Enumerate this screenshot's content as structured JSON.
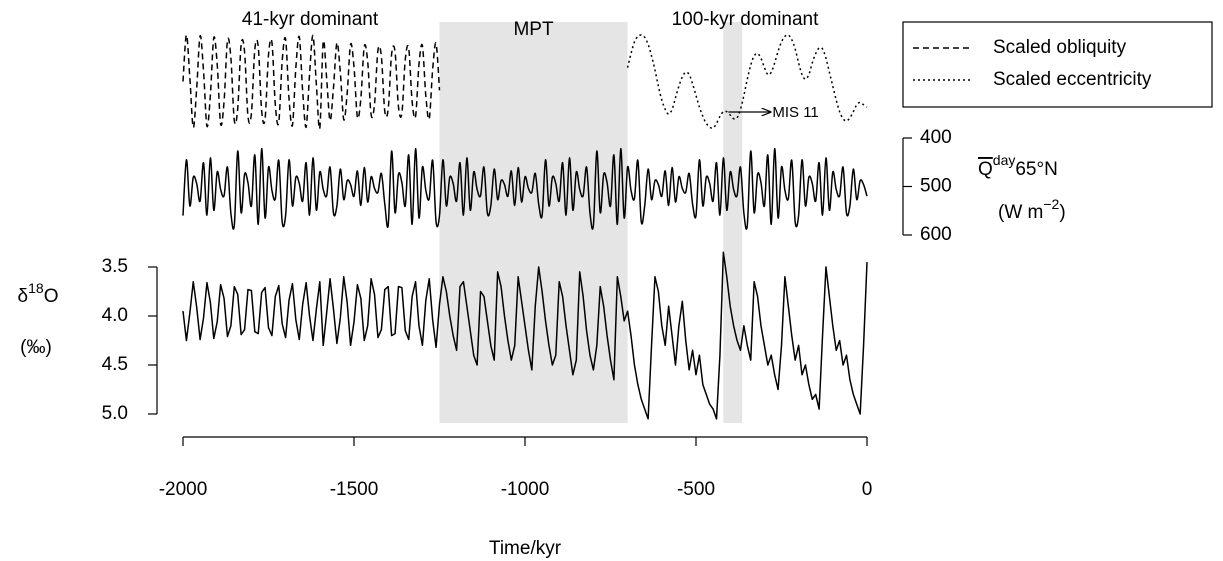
{
  "chart_data": {
    "type": "line",
    "period_labels": [
      "41-kyr dominant",
      "100-kyr dominant"
    ],
    "regions": [
      {
        "label": "MPT",
        "x": [
          -1250,
          -700
        ]
      },
      {
        "label": "MIS 11",
        "x": [
          -420,
          -365
        ]
      }
    ],
    "x_label": "Time/kyr",
    "y_label": [
      "δ",
      "18",
      "O"
    ],
    "y_units": "(‰)",
    "y2_label": [
      "Q",
      "day",
      "65°N"
    ],
    "y2_units": [
      "(W m",
      "−2",
      ")"
    ],
    "legend": "topright",
    "xlim": [
      -2000,
      0
    ],
    "xticks": [
      -2000,
      -1500,
      -1000,
      -500,
      0
    ],
    "ylim": [
      5.0,
      3.5
    ],
    "yticks": [
      3.5,
      {
        "value": 4,
        "label": "4.0"
      },
      4.5,
      {
        "value": 5,
        "label": "5.0"
      }
    ],
    "y2lim": [
      600,
      400
    ],
    "y2ticks": [
      400,
      500,
      600
    ],
    "top_ylim": [
      -1,
      1
    ],
    "x": [
      -2000,
      -1990,
      -1980,
      -1970,
      -1960,
      -1950,
      -1940,
      -1930,
      -1920,
      -1910,
      -1900,
      -1890,
      -1880,
      -1870,
      -1860,
      -1850,
      -1840,
      -1830,
      -1820,
      -1810,
      -1800,
      -1790,
      -1780,
      -1770,
      -1760,
      -1750,
      -1740,
      -1730,
      -1720,
      -1710,
      -1700,
      -1690,
      -1680,
      -1670,
      -1660,
      -1650,
      -1640,
      -1630,
      -1620,
      -1610,
      -1600,
      -1590,
      -1580,
      -1570,
      -1560,
      -1550,
      -1540,
      -1530,
      -1520,
      -1510,
      -1500,
      -1490,
      -1480,
      -1470,
      -1460,
      -1450,
      -1440,
      -1430,
      -1420,
      -1410,
      -1400,
      -1390,
      -1380,
      -1370,
      -1360,
      -1350,
      -1340,
      -1330,
      -1320,
      -1310,
      -1300,
      -1290,
      -1280,
      -1270,
      -1260,
      -1250,
      -1240,
      -1230,
      -1220,
      -1210,
      -1200,
      -1190,
      -1180,
      -1170,
      -1160,
      -1150,
      -1140,
      -1130,
      -1120,
      -1110,
      -1100,
      -1090,
      -1080,
      -1070,
      -1060,
      -1050,
      -1040,
      -1030,
      -1020,
      -1010,
      -1000,
      -990,
      -980,
      -970,
      -960,
      -950,
      -940,
      -930,
      -920,
      -910,
      -900,
      -890,
      -880,
      -870,
      -860,
      -850,
      -840,
      -830,
      -820,
      -810,
      -800,
      -790,
      -780,
      -770,
      -760,
      -750,
      -740,
      -730,
      -720,
      -710,
      -700,
      -690,
      -680,
      -670,
      -660,
      -650,
      -640,
      -630,
      -620,
      -610,
      -600,
      -590,
      -580,
      -570,
      -560,
      -550,
      -540,
      -530,
      -520,
      -510,
      -500,
      -490,
      -480,
      -470,
      -460,
      -450,
      -440,
      -430,
      -420,
      -410,
      -400,
      -390,
      -380,
      -370,
      -360,
      -350,
      -340,
      -330,
      -320,
      -310,
      -300,
      -290,
      -280,
      -270,
      -260,
      -250,
      -240,
      -230,
      -220,
      -210,
      -200,
      -190,
      -180,
      -170,
      -160,
      -150,
      -140,
      -130,
      -120,
      -110,
      -100,
      -90,
      -80,
      -70,
      -60,
      -50,
      -40,
      -30,
      -20,
      -10,
      0
    ],
    "series": [
      {
        "name": "Scaled obliquity",
        "color": "#000000",
        "line_style": "dashed",
        "axis": "top",
        "values": [
          0,
          1.0,
          0.08,
          -0.99,
          -0.15,
          0.98,
          0.23,
          -0.96,
          -0.3,
          0.94,
          0.37,
          -0.91,
          -0.44,
          0.88,
          0.51,
          -0.84,
          -0.58,
          0.79,
          0.64,
          -0.75,
          -0.69,
          0.69,
          0.75,
          -0.63,
          -0.8,
          0.57,
          0.84,
          -0.51,
          -0.88,
          0.44,
          0.91,
          -0.37,
          -0.94,
          0.3,
          0.96,
          -0.22,
          -0.98,
          0.15,
          0.99,
          -0.07,
          -1.0,
          0.85,
          0.07,
          -0.84,
          -0.13,
          0.83,
          0.2,
          -0.82,
          -0.26,
          0.8,
          0.31,
          -0.77,
          -0.37,
          0.75,
          0.43,
          -0.71,
          -0.49,
          0.67,
          0.54,
          -0.64,
          -0.59,
          0.59,
          0.64,
          -0.54,
          -0.68,
          0.48,
          0.71,
          -0.43,
          -0.75,
          0.37,
          0.77,
          -0.31,
          -0.8,
          0.26,
          0.82,
          -0.19,
          null,
          null,
          null,
          null,
          null,
          null,
          null,
          null,
          null,
          null,
          null,
          null,
          null,
          null,
          null,
          null,
          null,
          null,
          null,
          null,
          null,
          null,
          null,
          null,
          null,
          null,
          null,
          null,
          null,
          null,
          null,
          null,
          null,
          null,
          null,
          null,
          null,
          null,
          null,
          null,
          null,
          null,
          null,
          null,
          null,
          null,
          null,
          null,
          null,
          null,
          null,
          null,
          null,
          null,
          null,
          null,
          null,
          null,
          null,
          null,
          null,
          null,
          null,
          null,
          null,
          null,
          null,
          null,
          null,
          null,
          null,
          null,
          null,
          null,
          null,
          null,
          null,
          null,
          null,
          null,
          null,
          null,
          null,
          null,
          null,
          null,
          null,
          null,
          null,
          null,
          null,
          null,
          null,
          null,
          null,
          null,
          null,
          null,
          null,
          null,
          null,
          null,
          null,
          null,
          null,
          null,
          null,
          null,
          null,
          null,
          null,
          null,
          null,
          null,
          null,
          null,
          null,
          null,
          null,
          null,
          null,
          null,
          null,
          null,
          null
        ]
      },
      {
        "name": "Scaled eccentricity",
        "color": "#000000",
        "line_style": "dotted",
        "axis": "top",
        "values": [
          null,
          null,
          null,
          null,
          null,
          null,
          null,
          null,
          null,
          null,
          null,
          null,
          null,
          null,
          null,
          null,
          null,
          null,
          null,
          null,
          null,
          null,
          null,
          null,
          null,
          null,
          null,
          null,
          null,
          null,
          null,
          null,
          null,
          null,
          null,
          null,
          null,
          null,
          null,
          null,
          null,
          null,
          null,
          null,
          null,
          null,
          null,
          null,
          null,
          null,
          null,
          null,
          null,
          null,
          null,
          null,
          null,
          null,
          null,
          null,
          null,
          null,
          null,
          null,
          null,
          null,
          null,
          null,
          null,
          null,
          null,
          null,
          null,
          null,
          null,
          null,
          null,
          null,
          null,
          null,
          null,
          null,
          null,
          null,
          null,
          null,
          null,
          null,
          null,
          null,
          null,
          null,
          null,
          null,
          null,
          null,
          null,
          null,
          null,
          null,
          null,
          null,
          null,
          null,
          null,
          null,
          null,
          null,
          null,
          null,
          null,
          null,
          null,
          null,
          null,
          null,
          null,
          null,
          null,
          null,
          null,
          null,
          null,
          null,
          null,
          null,
          null,
          null,
          null,
          null,
          0.3,
          0.6,
          0.85,
          0.97,
          1.0,
          0.95,
          0.8,
          0.55,
          0.25,
          -0.1,
          -0.4,
          -0.6,
          -0.7,
          -0.6,
          -0.35,
          -0.1,
          0.1,
          0.2,
          0.15,
          -0.05,
          -0.3,
          -0.55,
          -0.75,
          -0.9,
          -0.98,
          -1.0,
          -0.9,
          -0.75,
          -0.65,
          -0.65,
          -0.72,
          -0.8,
          -0.78,
          -0.6,
          -0.3,
          0.05,
          0.35,
          0.55,
          0.6,
          0.5,
          0.3,
          0.15,
          0.2,
          0.4,
          0.65,
          0.85,
          0.97,
          1.0,
          0.9,
          0.7,
          0.4,
          0.15,
          0.05,
          0.15,
          0.4,
          0.6,
          0.72,
          0.7,
          0.5,
          0.2,
          -0.1,
          -0.4,
          -0.65,
          -0.8,
          -0.85,
          -0.78,
          -0.65,
          -0.5,
          -0.45,
          -0.5,
          -0.55
        ]
      },
      {
        "color": "#000000",
        "line_style": "solid",
        "axis": "y2",
        "values": [
          560,
          445,
          540,
          481,
          494,
          530,
          451,
          559,
          441,
          549,
          470,
          506,
          519,
          460,
          555,
          580,
          427,
          554,
          475,
          492,
          540,
          435,
          578,
          422,
          565,
          460,
          508,
          525,
          446,
          573,
          560,
          445,
          540,
          481,
          494,
          530,
          451,
          559,
          441,
          549,
          470,
          506,
          519,
          460,
          555,
          540,
          464,
          527,
          488,
          496,
          520,
          468,
          539,
          461,
          532,
          480,
          504,
          512,
          473,
          536,
          580,
          427,
          554,
          475,
          492,
          540,
          435,
          578,
          422,
          565,
          460,
          508,
          525,
          446,
          573,
          560,
          445,
          540,
          481,
          494,
          530,
          451,
          559,
          441,
          549,
          470,
          506,
          519,
          460,
          555,
          540,
          464,
          527,
          488,
          496,
          520,
          468,
          539,
          461,
          532,
          480,
          504,
          512,
          473,
          536,
          560,
          445,
          540,
          481,
          494,
          530,
          451,
          559,
          441,
          549,
          470,
          506,
          519,
          460,
          555,
          580,
          427,
          554,
          475,
          492,
          540,
          435,
          578,
          422,
          565,
          460,
          508,
          525,
          446,
          573,
          540,
          464,
          527,
          488,
          496,
          520,
          468,
          539,
          461,
          532,
          480,
          504,
          512,
          473,
          536,
          560,
          445,
          540,
          481,
          494,
          530,
          451,
          559,
          441,
          549,
          470,
          506,
          519,
          460,
          555,
          580,
          427,
          554,
          475,
          492,
          540,
          435,
          578,
          422,
          565,
          460,
          508,
          525,
          446,
          573,
          560,
          445,
          540,
          481,
          494,
          530,
          451,
          559,
          441,
          549,
          470,
          506,
          519,
          460,
          555,
          540,
          464,
          527,
          488,
          496,
          520
        ]
      },
      {
        "color": "#000000",
        "line_style": "solid",
        "axis": "y",
        "values": [
          3.95,
          4.25,
          3.97,
          3.65,
          3.91,
          4.24,
          4.02,
          3.66,
          3.86,
          4.23,
          4.06,
          3.68,
          3.82,
          4.21,
          4.1,
          3.7,
          3.78,
          4.19,
          4.14,
          3.73,
          3.74,
          4.16,
          4.18,
          3.76,
          3.71,
          4.12,
          4.2,
          3.8,
          3.69,
          4.08,
          4.22,
          3.84,
          3.67,
          4.04,
          4.24,
          3.88,
          3.66,
          4.0,
          4.25,
          3.93,
          3.65,
          4.3,
          3.97,
          3.62,
          3.93,
          4.28,
          4.02,
          3.6,
          3.86,
          4.3,
          4.06,
          3.68,
          3.82,
          4.25,
          4.1,
          3.62,
          3.78,
          4.22,
          4.14,
          3.73,
          3.7,
          4.2,
          4.18,
          3.7,
          3.71,
          4.15,
          4.24,
          3.8,
          3.65,
          4.1,
          4.3,
          3.84,
          3.62,
          4.04,
          4.32,
          3.88,
          3.6,
          3.75,
          4.0,
          4.2,
          4.35,
          3.7,
          3.65,
          3.9,
          4.15,
          4.4,
          4.5,
          3.75,
          3.8,
          4.05,
          4.3,
          4.45,
          3.55,
          3.7,
          4.0,
          4.25,
          4.45,
          4.3,
          3.6,
          3.85,
          4.1,
          4.35,
          4.55,
          3.9,
          3.5,
          3.75,
          4.05,
          4.3,
          4.5,
          4.4,
          3.65,
          3.8,
          4.1,
          4.35,
          4.6,
          4.45,
          3.55,
          3.8,
          4.15,
          4.4,
          4.55,
          4.3,
          3.7,
          3.9,
          4.2,
          4.45,
          4.65,
          3.6,
          3.8,
          4.05,
          3.95,
          4.2,
          4.5,
          4.7,
          4.85,
          4.95,
          5.05,
          4.3,
          3.6,
          3.75,
          4.1,
          4.3,
          3.9,
          4.2,
          4.5,
          4.1,
          3.85,
          4.25,
          4.55,
          4.35,
          4.6,
          4.4,
          4.7,
          4.8,
          4.9,
          4.95,
          5.05,
          4.4,
          3.35,
          3.6,
          3.9,
          4.1,
          4.25,
          4.35,
          4.1,
          4.3,
          4.45,
          3.65,
          3.8,
          4.1,
          4.3,
          4.5,
          4.4,
          4.6,
          4.75,
          4.3,
          3.6,
          3.9,
          4.2,
          4.45,
          4.3,
          4.6,
          4.5,
          4.7,
          4.85,
          4.8,
          4.95,
          4.2,
          3.5,
          3.8,
          4.1,
          4.35,
          4.25,
          4.5,
          4.4,
          4.65,
          4.8,
          4.9,
          5.0,
          4.3,
          3.45
        ]
      }
    ]
  }
}
